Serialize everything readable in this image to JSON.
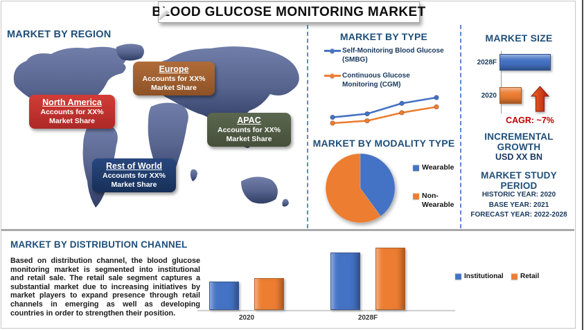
{
  "title": "BLOOD GLUCOSE MONITORING MARKET",
  "palette": {
    "heading_blue": "#1F4E79",
    "dark_navy": "#17375D",
    "accent_red": "#C00000",
    "chart_blue": "#4472C4",
    "chart_orange": "#ED7D31",
    "separator_blue": "#4472C4"
  },
  "region_section": {
    "heading": "MARKET BY REGION",
    "regions": [
      {
        "name": "North America",
        "share_line1": "Accounts for XX%",
        "share_line2": "Market Share",
        "color": "#C0312E"
      },
      {
        "name": "Europe",
        "share_line1": "Accounts for XX%",
        "share_line2": "Market Share",
        "color": "#A4662F"
      },
      {
        "name": "APAC",
        "share_line1": "Accounts for XX%",
        "share_line2": "Market Share",
        "color": "#4F5A44"
      },
      {
        "name": "Rest of World",
        "share_line1": "Accounts for XX%",
        "share_line2": "Market Share",
        "color": "#1F3864"
      }
    ]
  },
  "type_section": {
    "heading": "MARKET BY TYPE",
    "legend": [
      {
        "label": "Self-Monitoring Blood Glucose (SMBG)",
        "color": "#4472C4"
      },
      {
        "label": "Continuous Glucose Monitoring (CGM)",
        "color": "#ED7D31"
      }
    ]
  },
  "modality_section": {
    "heading": "MARKET BY MODALITY TYPE",
    "legend": [
      {
        "label": "Wearable",
        "color": "#4472C4"
      },
      {
        "label": "Non-Wearable",
        "color": "#ED7D31"
      }
    ]
  },
  "market_size_section": {
    "heading": "MARKET SIZE",
    "cagr_label": "CAGR:  ~7%",
    "incremental_heading": "INCREMENTAL GROWTH",
    "incremental_value": "USD XX BN",
    "study_heading": "MARKET STUDY PERIOD",
    "study_lines": [
      "HISTORIC YEAR: 2020",
      "BASE YEAR: 2021",
      "FORECAST YEAR: 2022-2028"
    ]
  },
  "distribution_section": {
    "heading": "MARKET BY DISTRIBUTION CHANNEL",
    "paragraph": "Based on distribution channel, the blood glucose monitoring market is segmented into institutional and retail sale. The retail sale segment captures a substantial market due to increasing initiatives by market players to expand presence through retail channels in emerging as well as developing countries in order to strengthen their position.",
    "legend": [
      {
        "label": "Institutional",
        "color": "#4472C4"
      },
      {
        "label": "Retail",
        "color": "#ED7D31"
      }
    ]
  },
  "chart_data": [
    {
      "id": "market-by-type-line",
      "type": "line",
      "x": [
        1,
        2,
        3,
        4
      ],
      "value_scale": "relative (no axes shown)",
      "series": [
        {
          "name": "Self-Monitoring Blood Glucose (SMBG)",
          "color": "#4472C4",
          "values": [
            13,
            16,
            25,
            30
          ]
        },
        {
          "name": "Continuous Glucose Monitoring (CGM)",
          "color": "#ED7D31",
          "values": [
            8,
            10,
            17,
            22
          ]
        }
      ],
      "legend_position": "top"
    },
    {
      "id": "market-by-modality-pie",
      "type": "pie",
      "labels": [
        "Wearable",
        "Non-Wearable"
      ],
      "values": [
        40,
        60
      ],
      "colors": [
        "#4472C4",
        "#ED7D31"
      ],
      "legend_position": "right"
    },
    {
      "id": "market-size-bars",
      "type": "bar",
      "orientation": "horizontal",
      "categories": [
        "2028F",
        "2020"
      ],
      "values": [
        100,
        43
      ],
      "colors": [
        "#4472C4",
        "#ED7D31"
      ],
      "value_scale": "relative (values shown as XX in source)",
      "annotation": "CAGR:  ~7%"
    },
    {
      "id": "market-by-distribution-grouped-bar",
      "type": "bar",
      "categories": [
        "2020",
        "2028F"
      ],
      "series": [
        {
          "name": "Institutional",
          "color": "#4472C4",
          "values": [
            40,
            81
          ]
        },
        {
          "name": "Retail",
          "color": "#ED7D31",
          "values": [
            45,
            88
          ]
        }
      ],
      "value_scale": "relative (no y-axis shown)",
      "legend_position": "right"
    }
  ]
}
